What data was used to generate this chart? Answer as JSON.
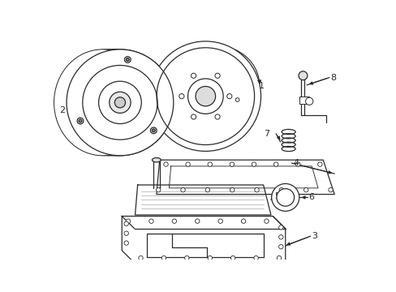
{
  "bg_color": "#ffffff",
  "line_color": "#2a2a2a",
  "lw": 0.9,
  "fig_w": 4.89,
  "fig_h": 3.6,
  "dpi": 100
}
